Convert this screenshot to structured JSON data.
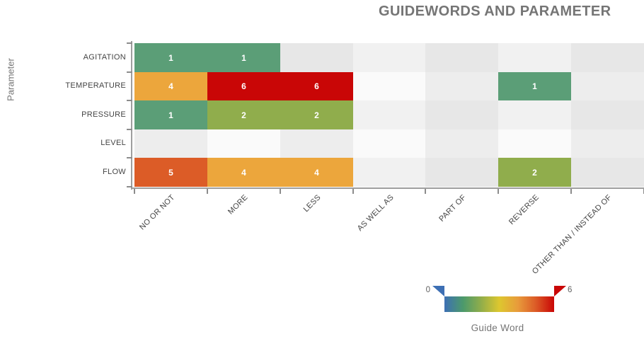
{
  "chart_data": {
    "type": "heatmap",
    "title": "GUIDEWORDS AND PARAMETER",
    "ylabel": "Parameter",
    "rows": [
      "AGITATION",
      "TEMPERATURE",
      "PRESSURE",
      "LEVEL",
      "FLOW"
    ],
    "columns": [
      "NO OR NOT",
      "MORE",
      "LESS",
      "AS WELL AS",
      "PART OF",
      "REVERSE",
      "OTHER THAN / INSTEAD OF"
    ],
    "values": [
      [
        1,
        1,
        null,
        null,
        null,
        null,
        null
      ],
      [
        4,
        6,
        6,
        null,
        null,
        1,
        null
      ],
      [
        1,
        2,
        2,
        null,
        null,
        null,
        null
      ],
      [
        null,
        null,
        null,
        null,
        null,
        null,
        null
      ],
      [
        5,
        4,
        4,
        null,
        null,
        2,
        null
      ]
    ],
    "value_range": [
      0,
      6
    ],
    "value_colors": {
      "1": "#5B9E77",
      "2": "#90AD4C",
      "4": "#ECA63C",
      "5": "#DC5C27",
      "6": "#C90606"
    },
    "empty_cell_colors": {
      "even_row_even_col": "#e7e7e7",
      "even_row_odd_col": "#f1f1f1",
      "odd_row_even_col": "#ededed",
      "odd_row_odd_col": "#fafafa"
    },
    "legend": {
      "min": "0",
      "max": "6",
      "title": "Guide Word",
      "gradient": [
        "#3D6FB4",
        "#4C9A6B",
        "#8FAD4B",
        "#DDC72F",
        "#E89B3B",
        "#DC5C27",
        "#C90606"
      ],
      "min_marker_color": "#3D6FB4",
      "max_marker_color": "#C90606"
    }
  }
}
